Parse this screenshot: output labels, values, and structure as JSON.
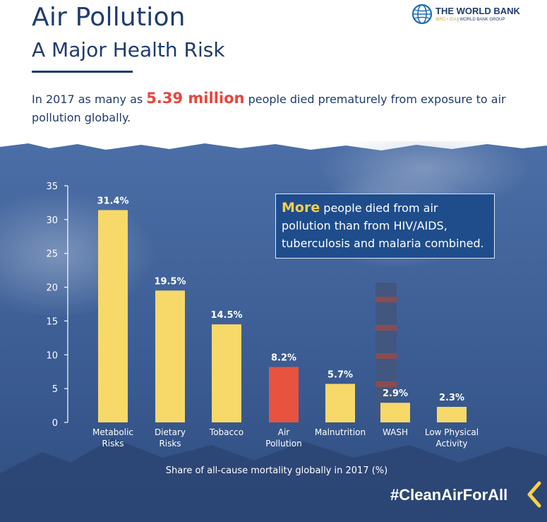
{
  "header": {
    "title": "Air Pollution",
    "subtitle": "A Major Health Risk",
    "intro_before": "In 2017 as many as ",
    "intro_highlight": "5.39 million",
    "intro_after": " people died prematurely from exposure to air pollution globally."
  },
  "logo": {
    "name": "THE WORLD BANK",
    "tagline_ibrd": "IBRD • IDA",
    "tagline_rest": " | WORLD BANK GROUP",
    "icon": "globe-icon"
  },
  "callout": {
    "lead": "More",
    "rest": " people died from air pollution than from HIV/AIDS, tuberculosis and malaria combined."
  },
  "hashtag": "#CleanAirForAll",
  "colors": {
    "navy": "#1f3b6e",
    "bar": "#f7d96a",
    "bar_highlight": "#e8533f",
    "accent_red": "#e8453c",
    "accent_yellow": "#f7d04e",
    "background_blue": "#3d5f96"
  },
  "chart_data": {
    "type": "bar",
    "categories": [
      [
        "Metabolic",
        "Risks"
      ],
      [
        "Dietary",
        "Risks"
      ],
      [
        "Tobacco"
      ],
      [
        "Air",
        "Pollution"
      ],
      [
        "Malnutrition"
      ],
      [
        "WASH"
      ],
      [
        "Low Physical",
        "Activity"
      ]
    ],
    "values": [
      31.4,
      19.5,
      14.5,
      8.2,
      5.7,
      2.9,
      2.3
    ],
    "value_labels": [
      "31.4%",
      "19.5%",
      "14.5%",
      "8.2%",
      "5.7%",
      "2.9%",
      "2.3%"
    ],
    "highlight_index": 3,
    "xlabel": "Share of all-cause mortality globally in 2017 (%)",
    "ylabel": "",
    "ylim": [
      0,
      35
    ],
    "yticks": [
      0,
      5,
      10,
      15,
      20,
      25,
      30,
      35
    ],
    "grid": false,
    "legend": "none"
  }
}
